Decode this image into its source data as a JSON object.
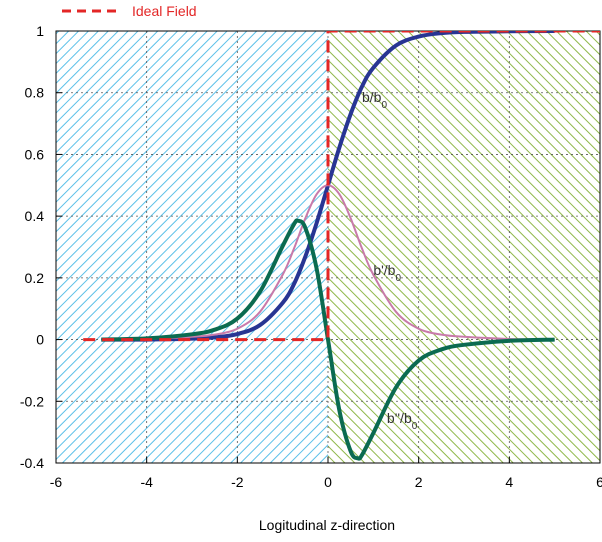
{
  "chart_data": {
    "type": "line",
    "title": "",
    "xlabel": "Logitudinal z-direction",
    "ylabel": "",
    "xlim": [
      -6,
      6
    ],
    "ylim": [
      -0.4,
      1
    ],
    "xticks": [
      "-6",
      "-4",
      "-2",
      "0",
      "2",
      "4",
      "6"
    ],
    "yticks": [
      "1",
      "0.8",
      "0.6",
      "0.4",
      "0.2",
      "0",
      "-0.2",
      "-0.4"
    ],
    "grid": true,
    "legend": {
      "position": "top-left",
      "entries": [
        "Ideal Field"
      ]
    },
    "regions": [
      {
        "x": [
          -6,
          0
        ],
        "fill": "hatched",
        "color": "#5bc0e8"
      },
      {
        "x": [
          0,
          6
        ],
        "fill": "hatched",
        "color": "#8fb84a"
      }
    ],
    "series": [
      {
        "name": "Ideal Field",
        "style": "dashed",
        "color": "#e32626",
        "x": [
          -5.4,
          0,
          0,
          6
        ],
        "y": [
          0,
          0,
          1,
          1
        ]
      },
      {
        "name": "b/b0",
        "color": "#283593",
        "x": [
          -5,
          -4,
          -3,
          -2.5,
          -2,
          -1.5,
          -1,
          -0.75,
          -0.5,
          -0.25,
          0,
          0.25,
          0.5,
          0.75,
          1,
          1.5,
          2,
          2.5,
          3,
          4,
          5
        ],
        "y": [
          0.0,
          0.0,
          0.003,
          0.007,
          0.018,
          0.047,
          0.119,
          0.18,
          0.269,
          0.378,
          0.5,
          0.622,
          0.731,
          0.82,
          0.881,
          0.953,
          0.982,
          0.993,
          0.997,
          0.999,
          1.0
        ]
      },
      {
        "name": "b'/b0",
        "color": "#c87aaa",
        "x": [
          -5,
          -4,
          -3,
          -2.5,
          -2,
          -1.5,
          -1,
          -0.75,
          -0.5,
          -0.25,
          0,
          0.25,
          0.5,
          0.75,
          1,
          1.5,
          2,
          2.5,
          3,
          4,
          5
        ],
        "y": [
          0.0,
          0.002,
          0.009,
          0.016,
          0.035,
          0.09,
          0.21,
          0.295,
          0.393,
          0.471,
          0.5,
          0.471,
          0.393,
          0.295,
          0.21,
          0.09,
          0.035,
          0.016,
          0.009,
          0.002,
          0.0
        ]
      },
      {
        "name": "b''/b0",
        "color": "#0b6b50",
        "x": [
          -5,
          -4,
          -3,
          -2.5,
          -2,
          -1.5,
          -1,
          -0.75,
          -0.66,
          -0.5,
          -0.25,
          0,
          0.25,
          0.5,
          0.66,
          0.75,
          1,
          1.5,
          2,
          2.5,
          3,
          4,
          5
        ],
        "y": [
          0.0,
          0.004,
          0.017,
          0.032,
          0.068,
          0.155,
          0.303,
          0.374,
          0.385,
          0.362,
          0.229,
          0.0,
          -0.229,
          -0.362,
          -0.385,
          -0.374,
          -0.303,
          -0.155,
          -0.068,
          -0.032,
          -0.017,
          -0.004,
          0.0
        ]
      }
    ],
    "annotations": [
      {
        "text": "b/b",
        "sub": "0",
        "x": 0.75,
        "y": 0.77
      },
      {
        "text": "b'/b",
        "sub": "0",
        "x": 1.0,
        "y": 0.21
      },
      {
        "text": "b''/b",
        "sub": "0",
        "x": 1.3,
        "y": -0.27
      }
    ]
  }
}
